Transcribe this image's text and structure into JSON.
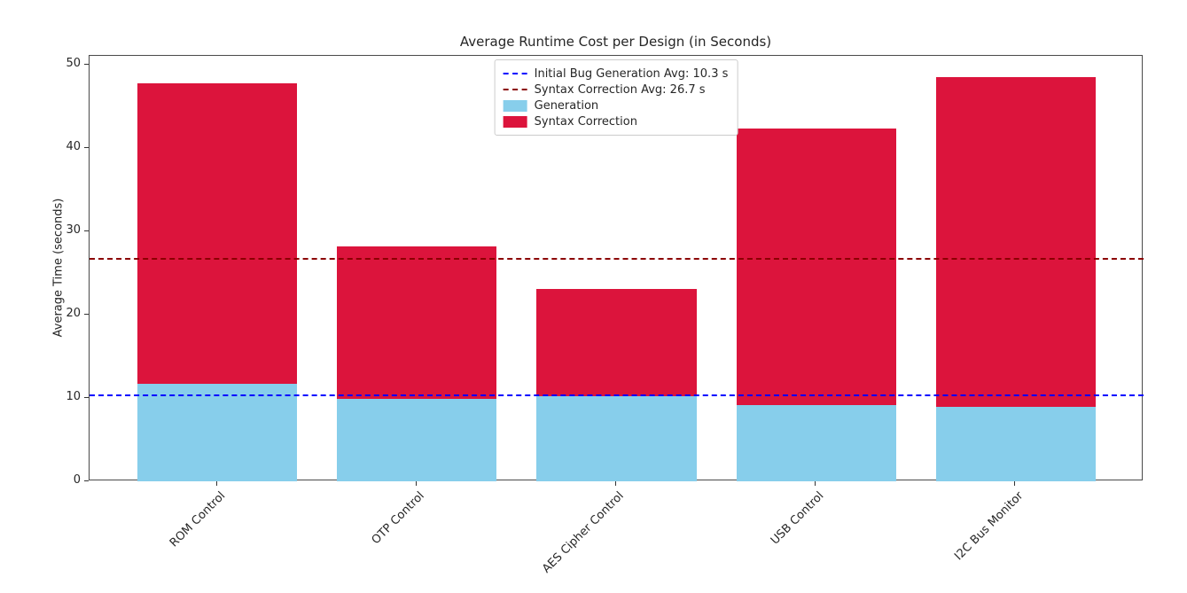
{
  "chart_data": {
    "type": "bar",
    "stacked": true,
    "title": "Average Runtime Cost per Design (in Seconds)",
    "xlabel": "",
    "ylabel": "Average Time (seconds)",
    "categories": [
      "ROM Control",
      "OTP Control",
      "AES Cipher Control",
      "USB Control",
      "I2C Bus Monitor"
    ],
    "series": [
      {
        "name": "Generation",
        "color": "#87CEEB",
        "values": [
          11.7,
          9.9,
          10.2,
          9.2,
          8.9
        ]
      },
      {
        "name": "Syntax Correction",
        "color": "#DC143C",
        "values": [
          36.1,
          18.3,
          12.9,
          33.2,
          39.6
        ]
      }
    ],
    "totals": [
      47.8,
      28.2,
      23.1,
      42.4,
      48.5
    ],
    "hlines": [
      {
        "label": "Initial Bug Generation Avg: 10.3 s",
        "value": 10.3,
        "color": "#0000FF",
        "style": "dashed"
      },
      {
        "label": "Syntax Correction Avg: 26.7 s",
        "value": 26.7,
        "color": "#8B0000",
        "style": "dashed"
      }
    ],
    "ylim": [
      0,
      51.1
    ],
    "yticks": [
      0,
      10,
      20,
      30,
      40,
      50
    ],
    "bar_width_ratio": 0.8,
    "grid": false,
    "legend_position": "upper center",
    "x_tick_rotation": 45
  }
}
